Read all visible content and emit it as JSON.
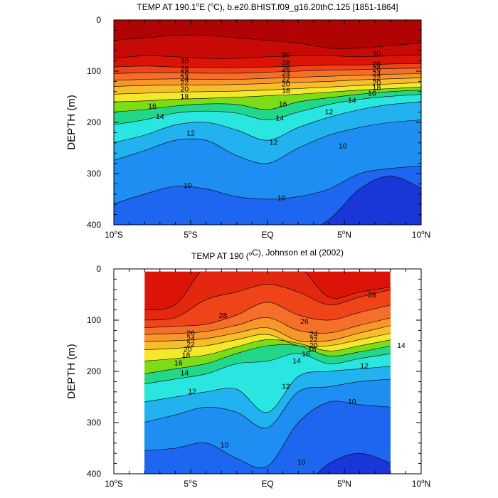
{
  "chart_data": [
    {
      "type": "contour",
      "title": "TEMP AT 190.1°E (°C), b.e20.BHIST.f09_g16.20thC.125 [1851-1864]",
      "title_parts": {
        "pre": "TEMP AT 190.1",
        "deg1": "o",
        "mid": "E (",
        "deg2": "o",
        "post": "C), b.e20.BHIST.f09_g16.20thC.125 [1851-1864]"
      },
      "ylabel": "DEPTH (m)",
      "xlim": [
        -10,
        10
      ],
      "ylim": [
        400,
        0
      ],
      "yticks": [
        "0",
        "100",
        "200",
        "300",
        "400"
      ],
      "xticks": [
        {
          "num": "10",
          "sup": "o",
          "hem": "S"
        },
        {
          "num": "5",
          "sup": "o",
          "hem": "S"
        },
        {
          "num": "EQ",
          "sup": "",
          "hem": ""
        },
        {
          "num": "5",
          "sup": "o",
          "hem": "N"
        },
        {
          "num": "10",
          "sup": "o",
          "hem": "N"
        }
      ],
      "data_xlim": [
        -10,
        10
      ],
      "contour_levels": [
        9,
        10,
        11,
        12,
        13,
        14,
        15,
        16,
        17,
        18,
        19,
        20,
        21,
        22,
        23,
        24,
        25,
        26,
        27,
        28,
        29,
        30,
        31
      ],
      "isotherm_depths": {
        "x": [
          -10,
          -8,
          -6,
          -4,
          -2,
          0,
          2,
          4,
          6,
          8,
          10
        ],
        "31": [
          40,
          35,
          30,
          30,
          35,
          40,
          45,
          55,
          55,
          50,
          45
        ],
        "30": [
          75,
          70,
          72,
          75,
          75,
          72,
          70,
          70,
          72,
          70,
          68
        ],
        "28": [
          92,
          90,
          92,
          93,
          93,
          92,
          90,
          88,
          88,
          86,
          85
        ],
        "26": [
          105,
          103,
          103,
          104,
          104,
          102,
          100,
          98,
          97,
          95,
          94
        ],
        "24": [
          118,
          116,
          115,
          116,
          116,
          114,
          112,
          110,
          108,
          106,
          105
        ],
        "22": [
          130,
          128,
          127,
          127,
          126,
          124,
          122,
          120,
          117,
          115,
          113
        ],
        "20": [
          145,
          143,
          141,
          140,
          139,
          137,
          134,
          131,
          128,
          125,
          122
        ],
        "18": [
          160,
          158,
          155,
          153,
          151,
          148,
          145,
          141,
          137,
          134,
          131
        ],
        "16": [
          180,
          175,
          168,
          164,
          165,
          175,
          160,
          152,
          145,
          140,
          137
        ],
        "14": [
          205,
          195,
          182,
          178,
          182,
          195,
          180,
          165,
          155,
          149,
          145
        ],
        "12": [
          240,
          225,
          205,
          200,
          215,
          235,
          210,
          190,
          175,
          165,
          160
        ],
        "11": [
          275,
          255,
          235,
          235,
          265,
          280,
          250,
          225,
          210,
          200,
          195
        ],
        "10": [
          360,
          340,
          325,
          330,
          345,
          350,
          345,
          330,
          300,
          290,
          285
        ],
        "9": [
          430,
          430,
          430,
          430,
          430,
          430,
          420,
          390,
          330,
          305,
          330
        ]
      }
    },
    {
      "type": "contour",
      "title": "TEMP AT 190 (°C), Johnson et al (2002)",
      "title_parts": {
        "pre": "TEMP AT 190 (",
        "deg1": "o",
        "mid": "",
        "deg2": "",
        "post": "C), Johnson et al (2002)"
      },
      "ylabel": "DEPTH (m)",
      "xlim": [
        -10,
        10
      ],
      "ylim": [
        400,
        0
      ],
      "yticks": [
        "0",
        "100",
        "200",
        "300",
        "400"
      ],
      "xticks": [
        {
          "num": "10",
          "sup": "o",
          "hem": "S"
        },
        {
          "num": "5",
          "sup": "o",
          "hem": "S"
        },
        {
          "num": "EQ",
          "sup": "",
          "hem": ""
        },
        {
          "num": "5",
          "sup": "o",
          "hem": "N"
        },
        {
          "num": "10",
          "sup": "o",
          "hem": "N"
        }
      ],
      "data_xlim": [
        -8,
        8
      ],
      "data_ylim": [
        5,
        400
      ],
      "contour_levels": [
        9,
        10,
        11,
        12,
        13,
        14,
        15,
        16,
        17,
        18,
        19,
        20,
        21,
        22,
        23,
        24,
        25,
        26,
        27,
        28,
        29,
        30,
        31
      ],
      "isotherm_depths": {
        "x": [
          -8,
          -6,
          -4,
          -2,
          0,
          2,
          4,
          6,
          8
        ],
        "29": [
          80,
          70,
          -5,
          -5,
          -5,
          -5,
          55,
          45,
          35
        ],
        "28": [
          100,
          95,
          60,
          45,
          30,
          45,
          70,
          55,
          40
        ],
        "26": [
          115,
          112,
          108,
          90,
          65,
          90,
          100,
          85,
          70
        ],
        "24": [
          128,
          126,
          122,
          110,
          95,
          120,
          125,
          110,
          95
        ],
        "22": [
          142,
          140,
          136,
          125,
          115,
          140,
          140,
          125,
          110
        ],
        "20": [
          158,
          155,
          150,
          138,
          128,
          150,
          150,
          138,
          125
        ],
        "18": [
          180,
          175,
          168,
          152,
          138,
          145,
          160,
          150,
          138
        ],
        "16": [
          205,
          195,
          185,
          165,
          150,
          150,
          170,
          162,
          150
        ],
        "14": [
          225,
          215,
          205,
          185,
          180,
          165,
          185,
          175,
          165
        ],
        "12": [
          260,
          250,
          240,
          235,
          280,
          210,
          200,
          195,
          190
        ],
        "11": [
          300,
          285,
          270,
          280,
          310,
          240,
          230,
          220,
          215
        ],
        "10": [
          355,
          350,
          340,
          370,
          385,
          300,
          260,
          265,
          270
        ],
        "9": [
          430,
          430,
          430,
          430,
          430,
          430,
          380,
          360,
          380
        ]
      }
    }
  ],
  "contour_labels": [
    [
      {
        "t": "30",
        "x": -5.4,
        "y": 81
      },
      {
        "t": "28",
        "x": -5.4,
        "y": 96
      },
      {
        "t": "26",
        "x": -5.4,
        "y": 106
      },
      {
        "t": "24",
        "x": -5.4,
        "y": 115
      },
      {
        "t": "22",
        "x": -5.4,
        "y": 124
      },
      {
        "t": "20",
        "x": -5.4,
        "y": 136
      },
      {
        "t": "18",
        "x": -5.4,
        "y": 150
      },
      {
        "t": "16",
        "x": -7.5,
        "y": 169
      },
      {
        "t": "14",
        "x": -7.0,
        "y": 189
      },
      {
        "t": "12",
        "x": -5.0,
        "y": 222
      },
      {
        "t": "10",
        "x": -5.2,
        "y": 324
      },
      {
        "t": "30",
        "x": 1.2,
        "y": 69
      },
      {
        "t": "28",
        "x": 1.2,
        "y": 84
      },
      {
        "t": "26",
        "x": 1.2,
        "y": 96
      },
      {
        "t": "24",
        "x": 1.2,
        "y": 106
      },
      {
        "t": "22",
        "x": 1.2,
        "y": 116
      },
      {
        "t": "20",
        "x": 1.2,
        "y": 126
      },
      {
        "t": "18",
        "x": 1.2,
        "y": 139
      },
      {
        "t": "16",
        "x": 1.0,
        "y": 165
      },
      {
        "t": "14",
        "x": 0.8,
        "y": 193
      },
      {
        "t": "12",
        "x": 0.4,
        "y": 240
      },
      {
        "t": "10",
        "x": 0.9,
        "y": 348
      },
      {
        "t": "30",
        "x": 7.1,
        "y": 67
      },
      {
        "t": "28",
        "x": 7.1,
        "y": 87
      },
      {
        "t": "26",
        "x": 7.1,
        "y": 97
      },
      {
        "t": "24",
        "x": 7.1,
        "y": 106
      },
      {
        "t": "22",
        "x": 7.1,
        "y": 114
      },
      {
        "t": "20",
        "x": 7.1,
        "y": 123
      },
      {
        "t": "18",
        "x": 7.1,
        "y": 133
      },
      {
        "t": "16",
        "x": 6.8,
        "y": 144
      },
      {
        "t": "14",
        "x": 5.5,
        "y": 158
      },
      {
        "t": "12",
        "x": 4.0,
        "y": 180
      },
      {
        "t": "10",
        "x": 4.9,
        "y": 247
      }
    ],
    [
      {
        "t": "28",
        "x": 6.8,
        "y": 52
      },
      {
        "t": "28",
        "x": -2.9,
        "y": 92
      },
      {
        "t": "26",
        "x": 2.4,
        "y": 103
      },
      {
        "t": "26",
        "x": -5.0,
        "y": 126
      },
      {
        "t": "24",
        "x": -5.0,
        "y": 137
      },
      {
        "t": "22",
        "x": -5.0,
        "y": 148
      },
      {
        "t": "20",
        "x": -5.2,
        "y": 158
      },
      {
        "t": "18",
        "x": -5.3,
        "y": 169
      },
      {
        "t": "16",
        "x": -5.8,
        "y": 184
      },
      {
        "t": "14",
        "x": -5.4,
        "y": 204
      },
      {
        "t": "12",
        "x": -4.9,
        "y": 240
      },
      {
        "t": "10",
        "x": -2.8,
        "y": 345
      },
      {
        "t": "24",
        "x": 3.0,
        "y": 128
      },
      {
        "t": "22",
        "x": 3.0,
        "y": 139
      },
      {
        "t": "20",
        "x": 3.0,
        "y": 150
      },
      {
        "t": "18",
        "x": 2.9,
        "y": 158
      },
      {
        "t": "16",
        "x": 2.5,
        "y": 167
      },
      {
        "t": "14",
        "x": 1.9,
        "y": 180
      },
      {
        "t": "12",
        "x": 1.2,
        "y": 230
      },
      {
        "t": "12",
        "x": 6.3,
        "y": 190
      },
      {
        "t": "14",
        "x": 8.7,
        "y": 150
      },
      {
        "t": "10",
        "x": 5.5,
        "y": 260
      },
      {
        "t": "10",
        "x": 2.2,
        "y": 378
      }
    ]
  ]
}
